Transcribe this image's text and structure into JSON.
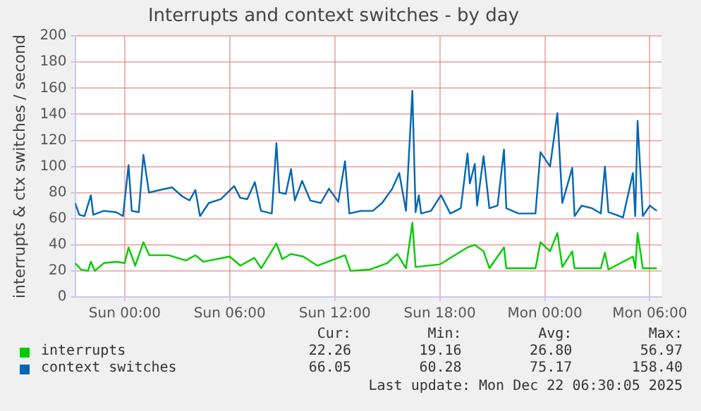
{
  "chart_data": {
    "type": "line",
    "title": "Interrupts and context switches - by day",
    "ylabel": "interrupts & ctx switches / second",
    "xlim": [
      "2025-12-20T21:10",
      "2025-12-22T06:40"
    ],
    "xticks": [
      {
        "value": "2025-12-21T00:00",
        "label": "Sun 00:00"
      },
      {
        "value": "2025-12-21T06:00",
        "label": "Sun 06:00"
      },
      {
        "value": "2025-12-21T12:00",
        "label": "Sun 12:00"
      },
      {
        "value": "2025-12-21T18:00",
        "label": "Sun 18:00"
      },
      {
        "value": "2025-12-22T00:00",
        "label": "Mon 00:00"
      },
      {
        "value": "2025-12-22T06:00",
        "label": "Mon 06:00"
      }
    ],
    "ylim": [
      0,
      200
    ],
    "yticks": [
      0,
      20,
      40,
      60,
      80,
      100,
      120,
      140,
      160,
      180,
      200
    ],
    "grid": true,
    "legend": "bottom",
    "marker": "none",
    "line_style": "solid",
    "series": [
      {
        "name": "interrupts",
        "color": "#00cc00",
        "x": [
          "2025-12-20T21:10",
          "2025-12-20T21:30",
          "2025-12-20T21:54",
          "2025-12-20T22:04",
          "2025-12-20T22:18",
          "2025-12-20T22:48",
          "2025-12-20T23:30",
          "2025-12-21T00:00",
          "2025-12-21T00:13",
          "2025-12-21T00:36",
          "2025-12-21T01:04",
          "2025-12-21T01:24",
          "2025-12-21T02:30",
          "2025-12-21T03:30",
          "2025-12-21T04:02",
          "2025-12-21T04:30",
          "2025-12-21T06:00",
          "2025-12-21T06:36",
          "2025-12-21T07:24",
          "2025-12-21T07:48",
          "2025-12-21T08:40",
          "2025-12-21T09:00",
          "2025-12-21T09:30",
          "2025-12-21T10:12",
          "2025-12-21T11:00",
          "2025-12-21T12:35",
          "2025-12-21T12:54",
          "2025-12-21T14:00",
          "2025-12-21T15:00",
          "2025-12-21T15:34",
          "2025-12-21T16:04",
          "2025-12-21T16:26",
          "2025-12-21T16:37",
          "2025-12-21T18:00",
          "2025-12-21T19:35",
          "2025-12-21T20:00",
          "2025-12-21T20:30",
          "2025-12-21T20:50",
          "2025-12-21T21:40",
          "2025-12-21T21:48",
          "2025-12-21T23:28",
          "2025-12-21T23:45",
          "2025-12-22T00:18",
          "2025-12-22T00:43",
          "2025-12-22T01:00",
          "2025-12-22T01:34",
          "2025-12-22T01:42",
          "2025-12-22T03:12",
          "2025-12-22T03:26",
          "2025-12-22T03:38",
          "2025-12-22T05:02",
          "2025-12-22T05:10",
          "2025-12-22T05:18",
          "2025-12-22T05:36",
          "2025-12-22T06:24"
        ],
        "values": [
          26,
          21,
          20,
          27,
          20,
          26,
          27,
          26,
          38,
          24,
          42,
          32,
          32,
          28,
          32,
          27,
          31,
          24,
          30,
          22,
          41,
          29,
          33,
          31,
          24,
          32,
          20,
          21,
          26,
          33,
          22,
          57,
          23,
          25,
          38,
          40,
          35,
          22,
          38,
          22,
          22,
          42,
          35,
          49,
          23,
          35,
          22,
          22,
          34,
          21,
          31,
          22,
          49,
          22,
          22
        ]
      },
      {
        "name": "context switches",
        "color": "#0066b3",
        "x": [
          "2025-12-20T21:10",
          "2025-12-20T21:24",
          "2025-12-20T21:42",
          "2025-12-20T22:04",
          "2025-12-20T22:12",
          "2025-12-20T22:48",
          "2025-12-20T23:30",
          "2025-12-20T23:54",
          "2025-12-21T00:13",
          "2025-12-21T00:24",
          "2025-12-21T00:48",
          "2025-12-21T01:04",
          "2025-12-21T01:23",
          "2025-12-21T02:00",
          "2025-12-21T02:42",
          "2025-12-21T03:18",
          "2025-12-21T03:42",
          "2025-12-21T04:02",
          "2025-12-21T04:18",
          "2025-12-21T04:48",
          "2025-12-21T05:30",
          "2025-12-21T06:15",
          "2025-12-21T06:36",
          "2025-12-21T07:00",
          "2025-12-21T07:26",
          "2025-12-21T07:47",
          "2025-12-21T08:24",
          "2025-12-21T08:40",
          "2025-12-21T08:50",
          "2025-12-21T09:12",
          "2025-12-21T09:30",
          "2025-12-21T09:43",
          "2025-12-21T10:08",
          "2025-12-21T10:36",
          "2025-12-21T11:12",
          "2025-12-21T11:40",
          "2025-12-21T12:12",
          "2025-12-21T12:35",
          "2025-12-21T12:50",
          "2025-12-21T13:30",
          "2025-12-21T14:10",
          "2025-12-21T14:42",
          "2025-12-21T15:17",
          "2025-12-21T15:41",
          "2025-12-21T16:04",
          "2025-12-21T16:26",
          "2025-12-21T16:37",
          "2025-12-21T16:48",
          "2025-12-21T16:56",
          "2025-12-21T17:30",
          "2025-12-21T18:04",
          "2025-12-21T18:36",
          "2025-12-21T19:12",
          "2025-12-21T19:35",
          "2025-12-21T19:43",
          "2025-12-21T20:00",
          "2025-12-21T20:08",
          "2025-12-21T20:30",
          "2025-12-21T20:50",
          "2025-12-21T21:18",
          "2025-12-21T21:40",
          "2025-12-21T21:48",
          "2025-12-21T22:30",
          "2025-12-21T23:28",
          "2025-12-21T23:45",
          "2025-12-22T00:18",
          "2025-12-22T00:43",
          "2025-12-22T01:00",
          "2025-12-22T01:34",
          "2025-12-22T01:42",
          "2025-12-22T02:06",
          "2025-12-22T02:42",
          "2025-12-22T03:12",
          "2025-12-22T03:26",
          "2025-12-22T03:38",
          "2025-12-22T04:28",
          "2025-12-22T05:02",
          "2025-12-22T05:10",
          "2025-12-22T05:18",
          "2025-12-22T05:36",
          "2025-12-22T06:00",
          "2025-12-22T06:24"
        ],
        "values": [
          72,
          63,
          62,
          78,
          63,
          66,
          65,
          62,
          101,
          66,
          65,
          109,
          80,
          82,
          84,
          77,
          74,
          82,
          62,
          72,
          75,
          85,
          76,
          75,
          88,
          66,
          64,
          118,
          80,
          79,
          98,
          74,
          89,
          74,
          72,
          83,
          73,
          104,
          64,
          66,
          66,
          72,
          83,
          95,
          66,
          158,
          65,
          78,
          64,
          66,
          78,
          64,
          68,
          110,
          87,
          102,
          70,
          108,
          68,
          70,
          113,
          68,
          64,
          64,
          111,
          100,
          141,
          72,
          99,
          62,
          70,
          68,
          64,
          100,
          65,
          61,
          95,
          62,
          135,
          62,
          70,
          66
        ]
      }
    ],
    "annotations": [
      "Cur:",
      "Min:",
      "Avg:",
      "Max:",
      "22.26",
      "19.16",
      "26.80",
      "56.97",
      "66.05",
      "60.28",
      "75.17",
      "158.40",
      "Last update: Mon Dec 22 06:30:05 2025"
    ]
  }
}
